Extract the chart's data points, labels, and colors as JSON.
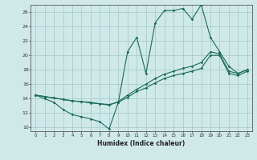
{
  "xlabel": "Humidex (Indice chaleur)",
  "xlim": [
    -0.5,
    23.5
  ],
  "ylim": [
    9.5,
    27.0
  ],
  "xticks": [
    0,
    1,
    2,
    3,
    4,
    5,
    6,
    7,
    8,
    9,
    10,
    11,
    12,
    13,
    14,
    15,
    16,
    17,
    18,
    19,
    20,
    21,
    22,
    23
  ],
  "yticks": [
    10,
    12,
    14,
    16,
    18,
    20,
    22,
    24,
    26
  ],
  "bg_color": "#cfe8e8",
  "grid_color": "#a8cccc",
  "line_color": "#1a6b5a",
  "line1_y": [
    14.5,
    14.0,
    13.5,
    12.5,
    11.8,
    11.5,
    11.2,
    10.8,
    9.8,
    13.5,
    20.5,
    22.5,
    17.5,
    24.5,
    26.2,
    26.2,
    26.5,
    25.0,
    27.0,
    22.5,
    20.5,
    18.5,
    17.5,
    18.0
  ],
  "line2_y": [
    14.5,
    14.3,
    14.1,
    13.9,
    13.7,
    13.6,
    13.4,
    13.3,
    13.2,
    13.5,
    14.2,
    15.0,
    15.5,
    16.2,
    16.8,
    17.2,
    17.5,
    17.8,
    18.2,
    20.0,
    20.0,
    17.5,
    17.2,
    17.8
  ],
  "line3_y": [
    14.5,
    14.3,
    14.1,
    13.9,
    13.7,
    13.6,
    13.5,
    13.3,
    13.1,
    13.6,
    14.5,
    15.3,
    16.0,
    16.8,
    17.4,
    17.8,
    18.2,
    18.5,
    19.0,
    20.5,
    20.2,
    17.8,
    17.5,
    18.0
  ]
}
